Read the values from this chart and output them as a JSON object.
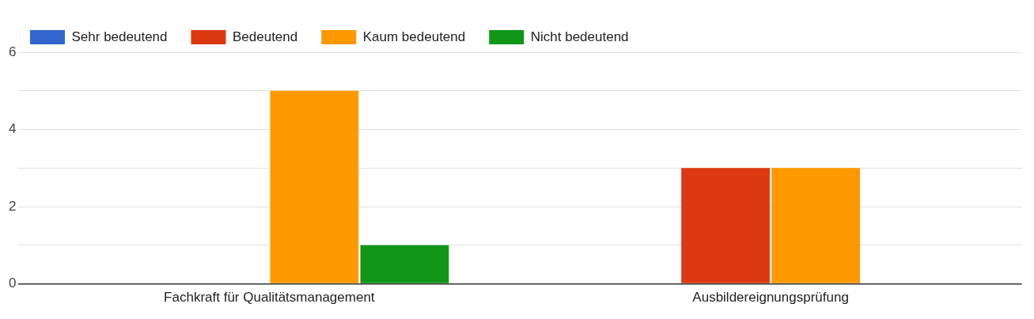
{
  "chart_data": {
    "type": "bar",
    "categories": [
      "Fachkraft für Qualitätsmanagement",
      "Ausbildereignungsprüfung"
    ],
    "series": [
      {
        "name": "Sehr bedeutend",
        "color": "#3366cc",
        "values": [
          0,
          0
        ]
      },
      {
        "name": "Bedeutend",
        "color": "#dc3912",
        "values": [
          0,
          3
        ]
      },
      {
        "name": "Kaum bedeutend",
        "color": "#ff9900",
        "values": [
          5,
          3
        ]
      },
      {
        "name": "Nicht bedeutend",
        "color": "#109618",
        "values": [
          1,
          0
        ]
      }
    ],
    "ylim": [
      0,
      6
    ],
    "yticks": [
      0,
      {
        "value": 1,
        "label": null
      },
      2,
      {
        "value": 3,
        "label": null
      },
      4,
      {
        "value": 5,
        "label": null
      },
      6
    ],
    "grid": "y",
    "legend": "top left"
  }
}
